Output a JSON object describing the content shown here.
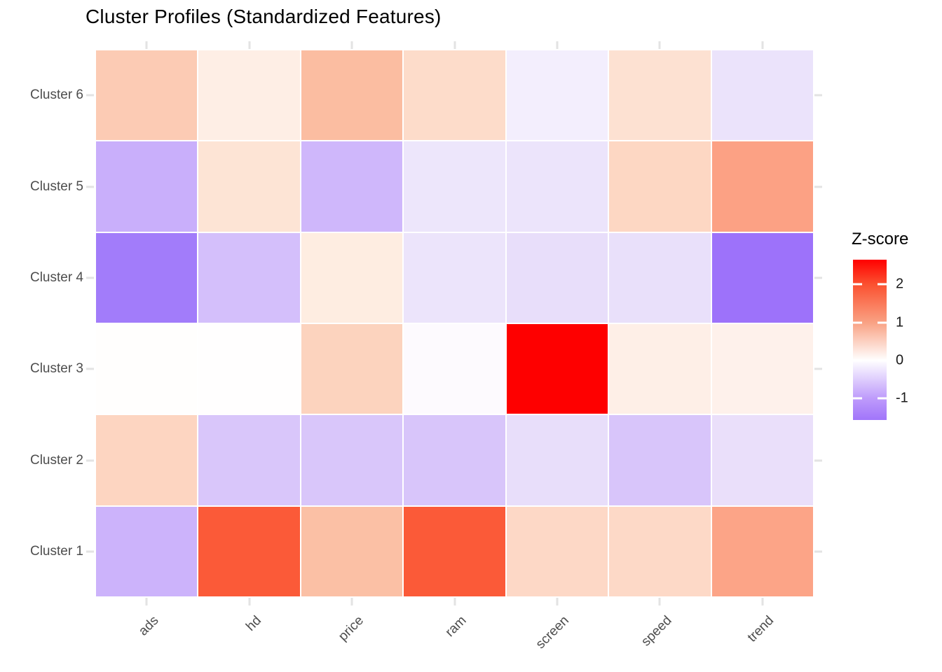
{
  "title": "Cluster Profiles (Standardized Features)",
  "chart_data": {
    "type": "heatmap",
    "title": "Cluster Profiles (Standardized Features)",
    "xlabel": "",
    "ylabel": "",
    "x_tick_rotation_deg": 45,
    "categories_x": [
      "ads",
      "hd",
      "price",
      "ram",
      "screen",
      "speed",
      "trend"
    ],
    "categories_y_top_to_bottom": [
      "Cluster 6",
      "Cluster 5",
      "Cluster 4",
      "Cluster 3",
      "Cluster 2",
      "Cluster 1"
    ],
    "series": [
      {
        "name": "Cluster 6",
        "values": [
          0.7,
          0.2,
          0.85,
          0.5,
          -0.15,
          0.45,
          -0.3
        ],
        "colors": [
          "#FCCBB4",
          "#FEEEE5",
          "#FBBDA1",
          "#FDDCCA",
          "#F3EEFD",
          "#FDE1D2",
          "#EBE3FB"
        ]
      },
      {
        "name": "Cluster 5",
        "values": [
          -0.9,
          0.4,
          -0.8,
          -0.3,
          -0.3,
          0.55,
          1.3
        ],
        "colors": [
          "#C9AFFB",
          "#FDE4D5",
          "#CFB7FB",
          "#EDE6FB",
          "#ECE4FB",
          "#FDD7C3",
          "#FCA184"
        ]
      },
      {
        "name": "Cluster 4",
        "values": [
          -1.45,
          -0.7,
          0.25,
          -0.3,
          -0.4,
          -0.4,
          -1.55
        ],
        "colors": [
          "#A27CFA",
          "#D4BFFB",
          "#FEEDE1",
          "#ECE4FB",
          "#E8DEFA",
          "#E9E0FA",
          "#9D72FA"
        ]
      },
      {
        "name": "Cluster 3",
        "values": [
          0.0,
          0.0,
          0.6,
          -0.05,
          2.65,
          0.2,
          0.18
        ],
        "colors": [
          "#FFFEFD",
          "#FFFEFE",
          "#FCD3BE",
          "#FDFAFE",
          "#FE0000",
          "#FEEFE7",
          "#FEF1EB"
        ]
      },
      {
        "name": "Cluster 2",
        "values": [
          0.6,
          -0.6,
          -0.6,
          -0.62,
          -0.4,
          -0.62,
          -0.38
        ],
        "colors": [
          "#FDD5C1",
          "#D9C6FA",
          "#D9C6FA",
          "#D8C5FA",
          "#E8DEFA",
          "#D8C5FA",
          "#EADFFA"
        ]
      },
      {
        "name": "Cluster 1",
        "values": [
          -0.85,
          1.95,
          0.9,
          1.95,
          0.55,
          0.55,
          1.25
        ],
        "colors": [
          "#CCB3FB",
          "#FB5A38",
          "#FBC0A5",
          "#FB5A38",
          "#FDD8C6",
          "#FDD9C7",
          "#FCA487"
        ]
      }
    ],
    "legend": {
      "title": "Z-score",
      "position": "right",
      "tick_labels": [
        "2",
        "1",
        "0",
        "-1"
      ],
      "tick_values": [
        2,
        1,
        0,
        -1
      ],
      "domain": [
        -1.57,
        2.65
      ],
      "gradient_stops": [
        {
          "value": 2.65,
          "color": "#FF0000"
        },
        {
          "value": 2.0,
          "color": "#FB5130"
        },
        {
          "value": 1.0,
          "color": "#F9A183"
        },
        {
          "value": 0.0,
          "color": "#FFFFFF"
        },
        {
          "value": -1.0,
          "color": "#BE9BFB"
        },
        {
          "value": -1.57,
          "color": "#A175FA"
        }
      ]
    },
    "style": {
      "background_color": "#FFFFFF",
      "cell_gap_color": "#FFFFFF",
      "tick_mark_color": "#E3E3E3",
      "axis_text_color": "#4D4D4D",
      "title_color": "#000000",
      "grid": false
    }
  }
}
